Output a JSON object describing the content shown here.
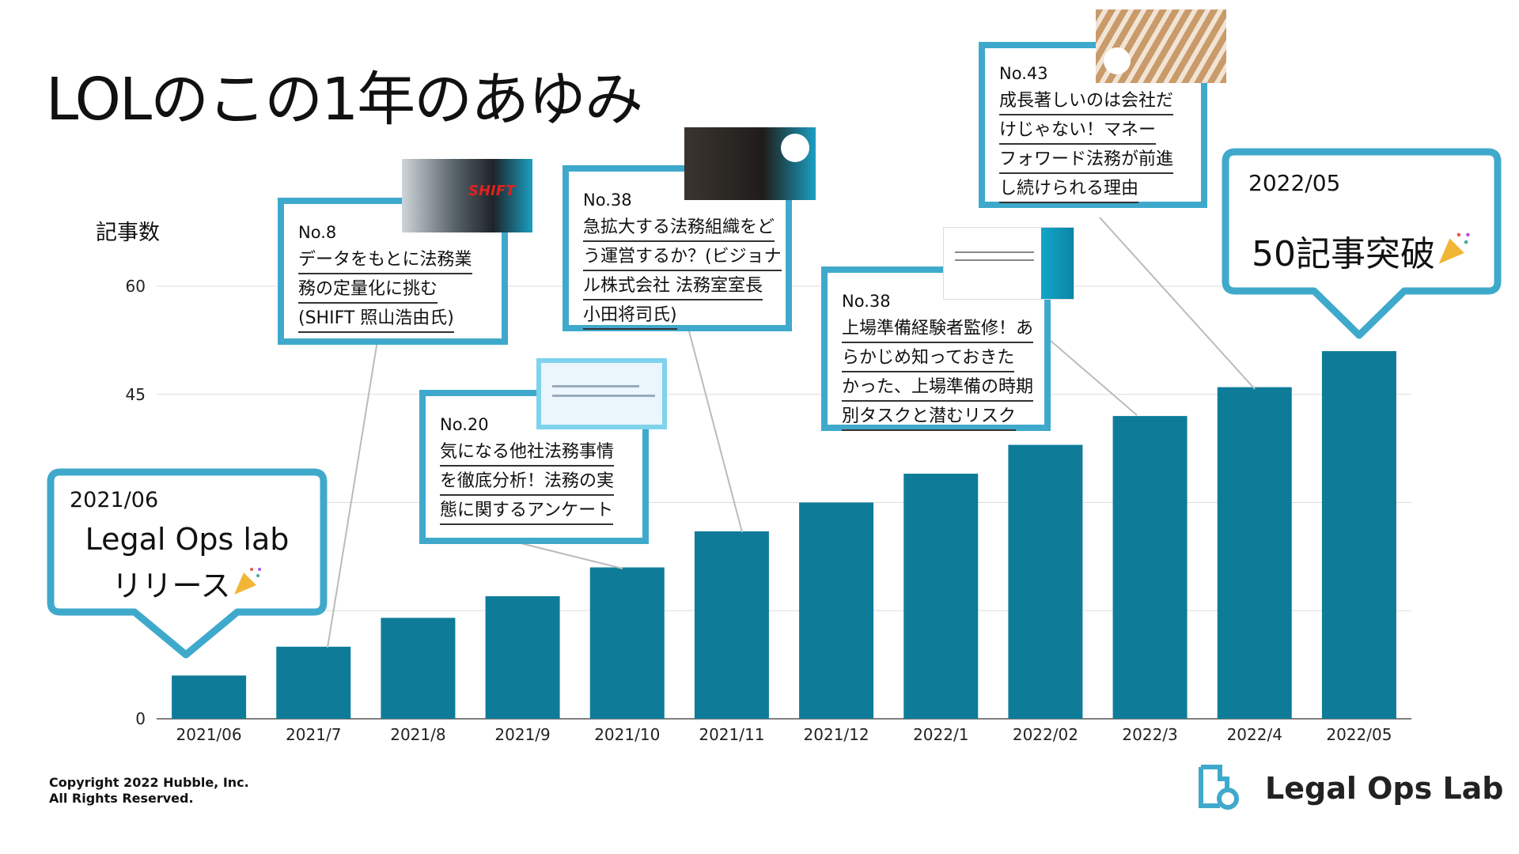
{
  "title": "LOLのこの1年のあゆみ",
  "chart_data": {
    "type": "bar",
    "title": "",
    "xlabel": "",
    "ylabel": "記事数",
    "ylim": [
      0,
      60
    ],
    "yticks": [
      0,
      15,
      30,
      45,
      60
    ],
    "ytick_labels_visible": [
      "0",
      "45",
      "60"
    ],
    "grid": true,
    "categories": [
      "2021/06",
      "2021/7",
      "2021/8",
      "2021/9",
      "2021/10",
      "2021/11",
      "2021/12",
      "2022/1",
      "2022/02",
      "2022/3",
      "2022/4",
      "2022/05"
    ],
    "values": [
      6,
      10,
      14,
      17,
      21,
      26,
      30,
      34,
      38,
      42,
      46,
      51
    ],
    "bar_color": "#0e7c99"
  },
  "callouts": {
    "start": {
      "date": "2021/06",
      "line1": "Legal Ops lab",
      "line2": "リリース"
    },
    "end": {
      "date": "2022/05",
      "text": "50記事突破"
    },
    "articles": [
      {
        "no": "No.8",
        "lines": [
          "データをもとに法務業",
          "務の定量化に挑む",
          "(SHIFT 照山浩由氏)"
        ]
      },
      {
        "no": "No.20",
        "lines": [
          "気になる他社法務事情",
          "を徹底分析！法務の実",
          "態に関するアンケート"
        ]
      },
      {
        "no": "No.38",
        "lines": [
          "急拡大する法務組織をど",
          "う運営するか？(ビジョナ",
          "ル株式会社 法務室室長",
          "小田将司氏)"
        ]
      },
      {
        "no": "No.38",
        "lines": [
          "上場準備経験者監修！あ",
          "らかじめ知っておきた",
          "かった、上場準備の時期",
          "別タスクと潜むリスク"
        ]
      },
      {
        "no": "No.43",
        "lines": [
          "成長著しいのは会社だ",
          "けじゃない！マネー",
          "フォワード法務が前進",
          "し続けられる理由"
        ]
      }
    ]
  },
  "colors": {
    "accent": "#3fa9cc",
    "bar": "#0e7c99"
  },
  "icons": {
    "celebration": "party-popper-icon",
    "logo": "legal-ops-lab-logo-icon"
  },
  "footer": {
    "copyright_line1": "Copyright 2022 Hubble, Inc.",
    "copyright_line2": "All Rights Reserved."
  },
  "logo": {
    "text": "Legal Ops Lab"
  }
}
